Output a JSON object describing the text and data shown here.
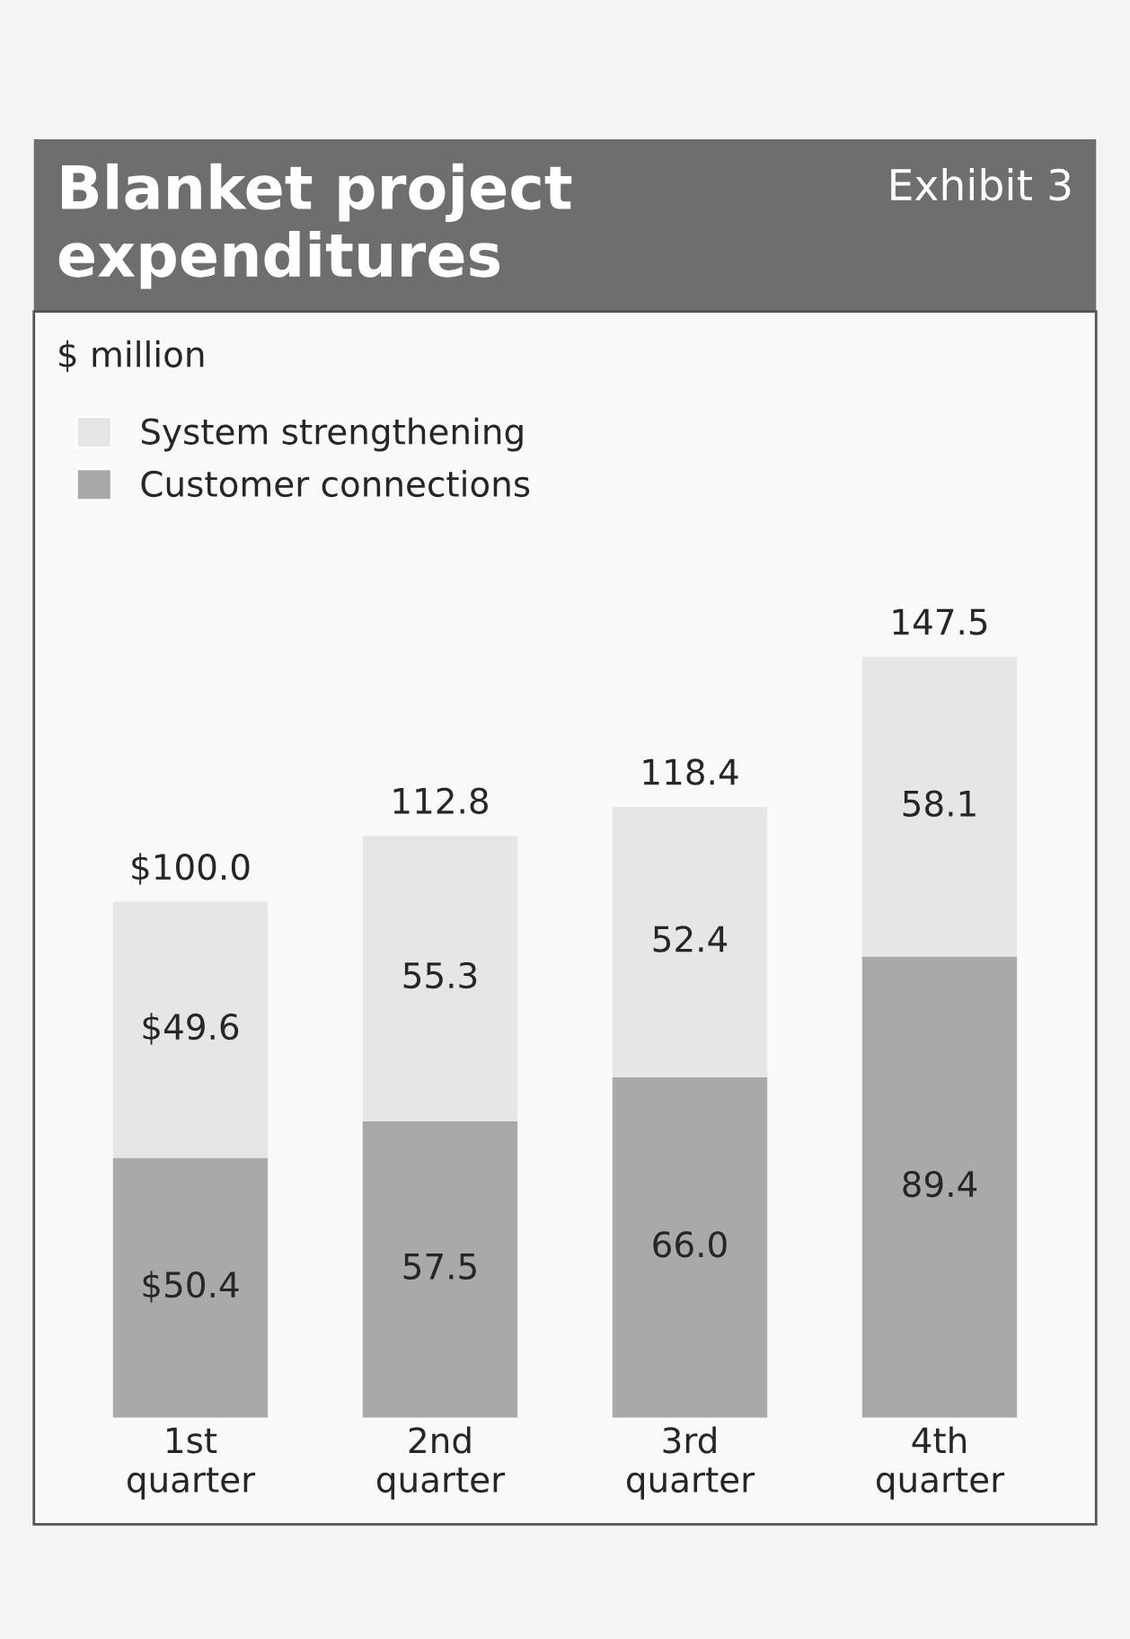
{
  "chart_data": {
    "type": "bar",
    "title": "Blanket project\nexpenditures",
    "subtitle": "Exhibit 3",
    "annotations": [
      "$ million"
    ],
    "stacked": true,
    "legend": "top left",
    "categories": [
      "1st\nquarter",
      "2nd\nquarter",
      "3rd\nquarter",
      "4th\nquarter"
    ],
    "series": [
      {
        "name": "Customer connections",
        "color": "#a9a9a9",
        "values": [
          50.4,
          57.5,
          66.0,
          89.4
        ],
        "value_labels": [
          "$50.4",
          "57.5",
          "66.0",
          "89.4"
        ]
      },
      {
        "name": "System strengthening",
        "color": "#e6e6e6",
        "values": [
          49.6,
          55.3,
          52.4,
          58.1
        ],
        "value_labels": [
          "$49.6",
          "55.3",
          "52.4",
          "58.1"
        ]
      }
    ],
    "totals": [
      "$100.0",
      "112.8",
      "118.4",
      "147.5"
    ]
  }
}
